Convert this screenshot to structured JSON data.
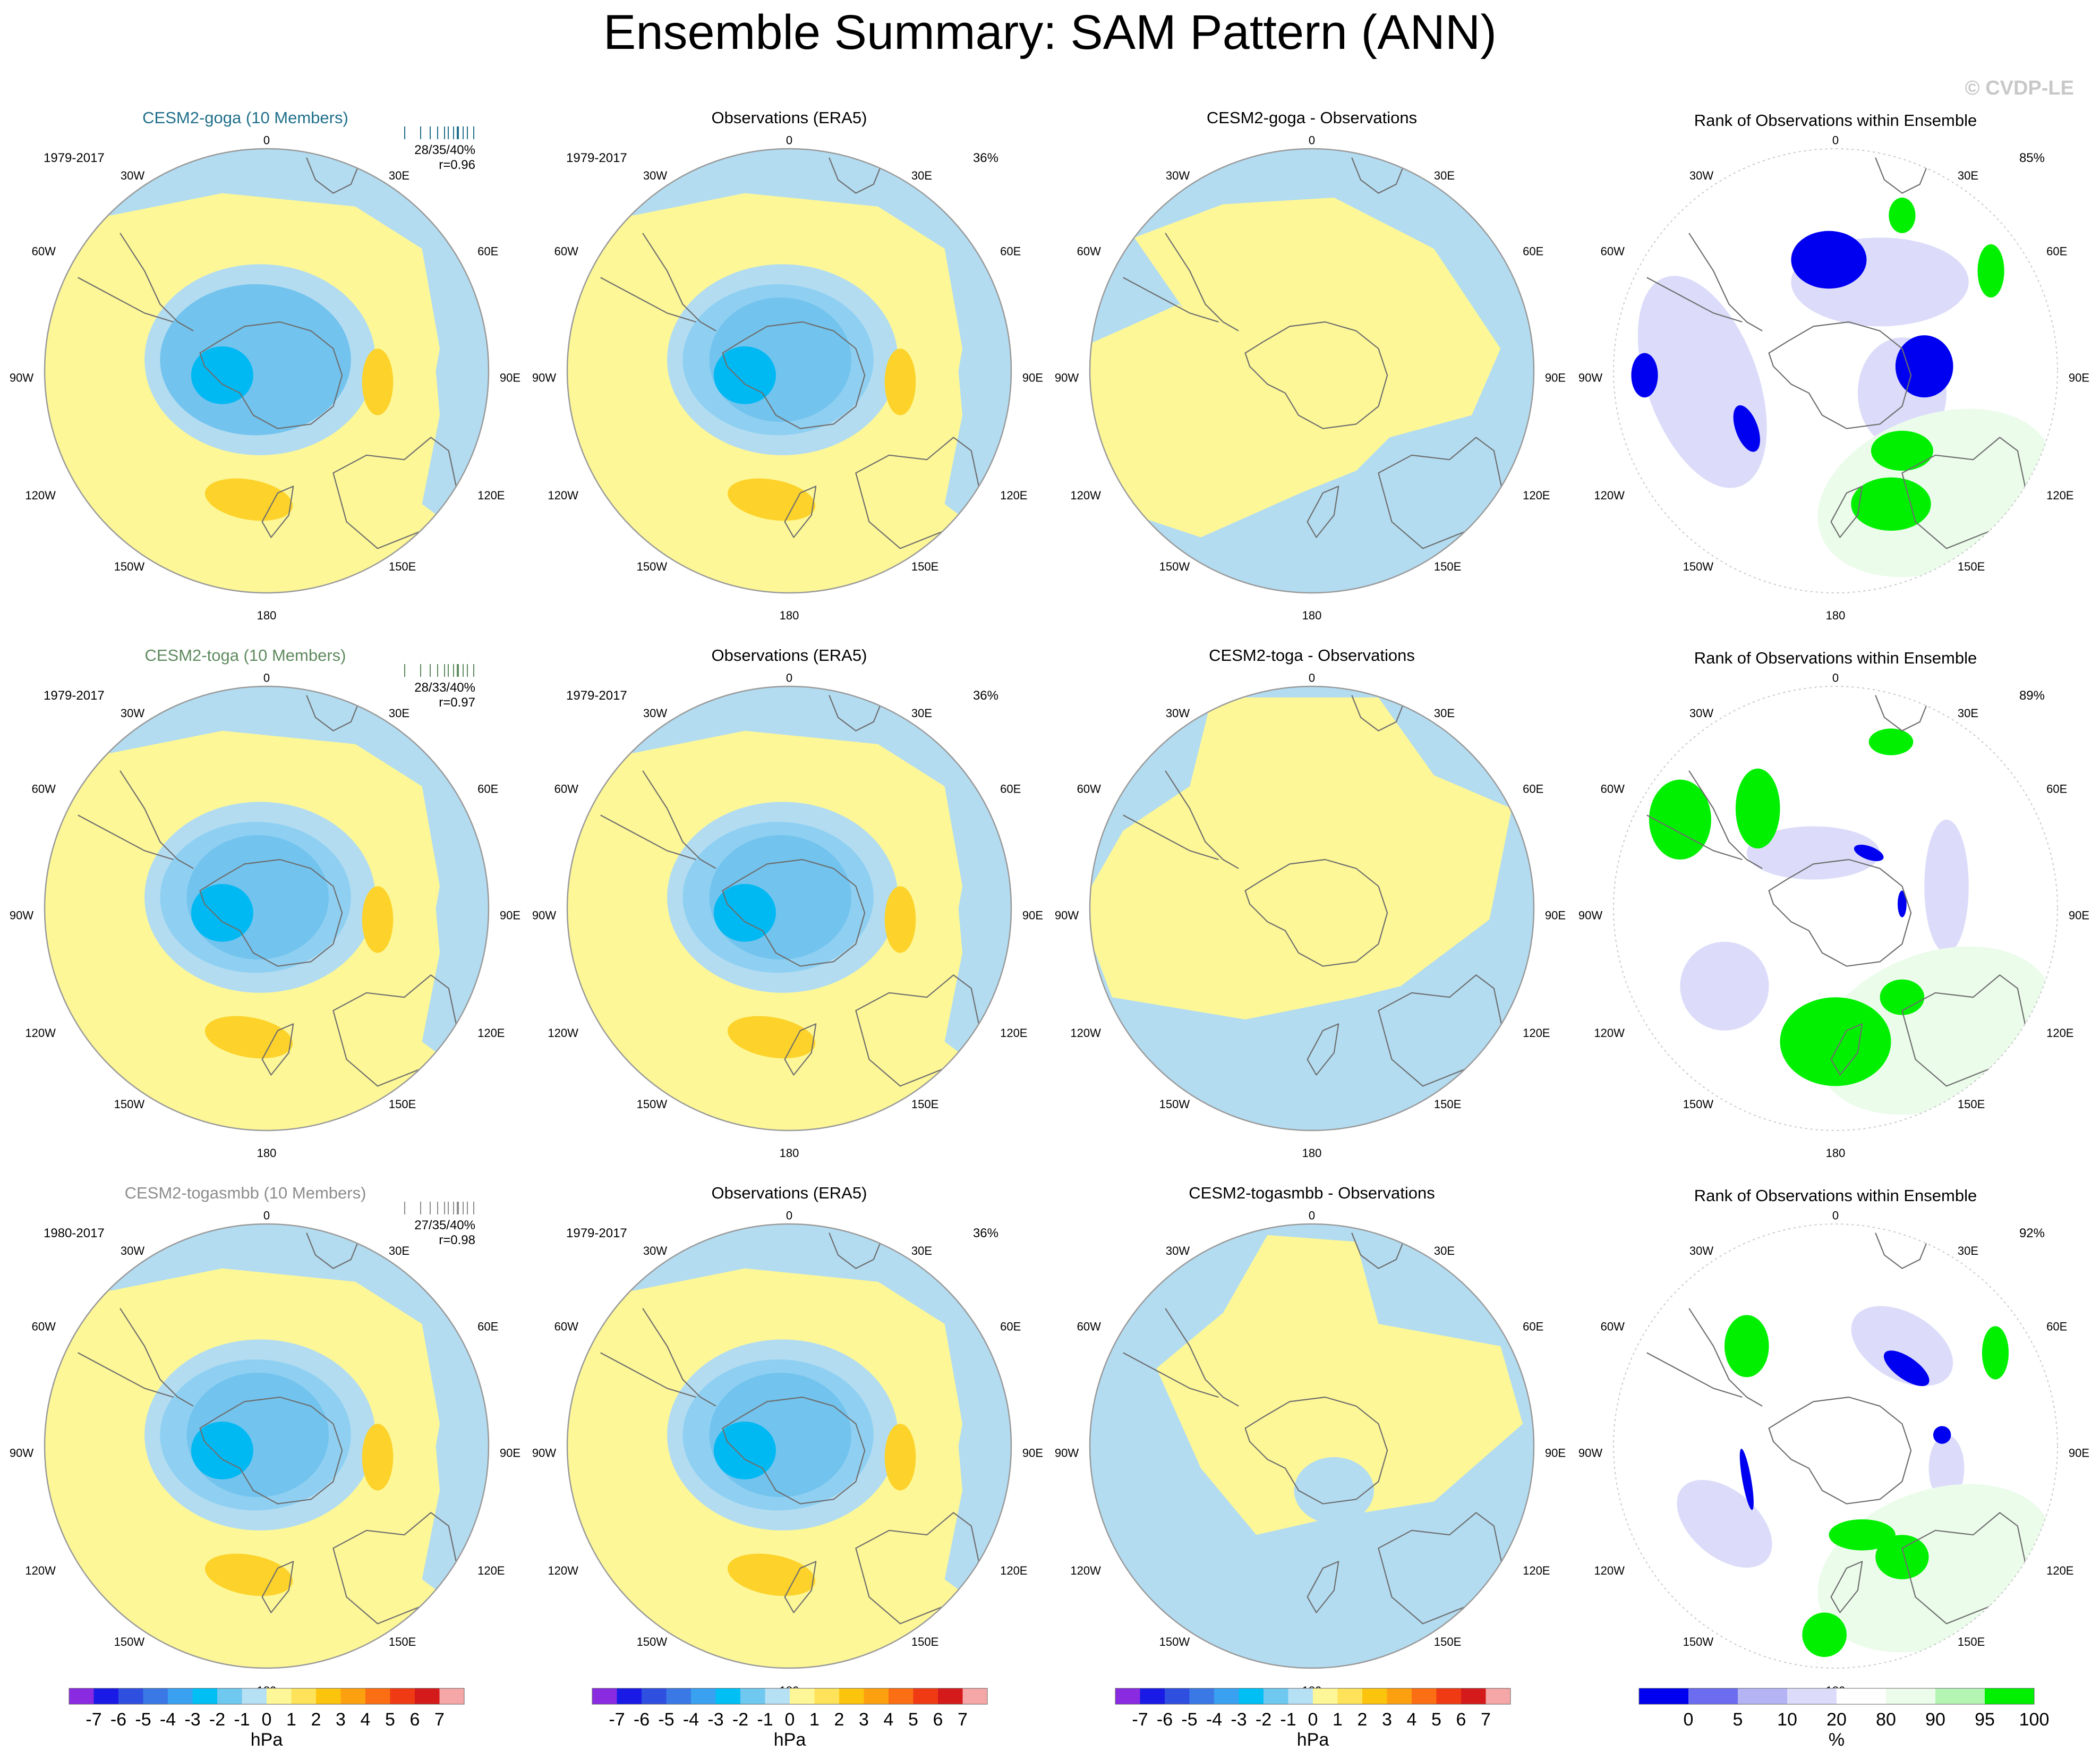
{
  "page": {
    "title": "Ensemble Summary: SAM Pattern (ANN)",
    "watermark": "© CVDP-LE"
  },
  "colors": {
    "ocean_light_blue": "#b3dcf1",
    "pale_yellow": "#fdf797",
    "mid_blue": "#72c3ee",
    "cyan_blue": "#00b9f2",
    "gold": "#fdd22a",
    "title_goga": "#1f6f8b",
    "title_toga": "#5e8a5e",
    "title_togasmbb": "#8c8c8c",
    "rank_blue": "#0000f0",
    "rank_lavender": "#dcdcfa",
    "rank_green": "#00f000",
    "rank_palegreen": "#ebfceb",
    "coast": "#6e6e6e"
  },
  "polar_labels": {
    "top": "0",
    "bottom": "180",
    "upper_left": "30W",
    "upper_right": "30E",
    "mid_upper_left": "60W",
    "mid_upper_right": "60E",
    "left": "90W",
    "right": "90E",
    "mid_lower_left": "120W",
    "mid_lower_right": "120E",
    "lower_left": "150W",
    "lower_right": "150E"
  },
  "rows": [
    {
      "model": {
        "title": "CESM2-goga (10 Members)",
        "years": "1979-2017",
        "stats": "28/35/40%",
        "corr": "r=0.96",
        "title_color_key": "title_goga"
      },
      "obs": {
        "title": "Observations (ERA5)",
        "years": "1979-2017",
        "pct": "36%"
      },
      "diff": {
        "title": "CESM2-goga - Observations"
      },
      "rank": {
        "title": "Rank of Observations within Ensemble",
        "pct": "85%"
      }
    },
    {
      "model": {
        "title": "CESM2-toga (10 Members)",
        "years": "1979-2017",
        "stats": "28/33/40%",
        "corr": "r=0.97",
        "title_color_key": "title_toga"
      },
      "obs": {
        "title": "Observations (ERA5)",
        "years": "1979-2017",
        "pct": "36%"
      },
      "diff": {
        "title": "CESM2-toga - Observations"
      },
      "rank": {
        "title": "Rank of Observations within Ensemble",
        "pct": "89%"
      }
    },
    {
      "model": {
        "title": "CESM2-togasmbb (10 Members)",
        "years": "1980-2017",
        "stats": "27/35/40%",
        "corr": "r=0.98",
        "title_color_key": "title_togasmbb"
      },
      "obs": {
        "title": "Observations (ERA5)",
        "years": "1979-2017",
        "pct": "36%"
      },
      "diff": {
        "title": "CESM2-togasmbb - Observations"
      },
      "rank": {
        "title": "Rank of Observations within Ensemble",
        "pct": "92%"
      }
    }
  ],
  "colorbars": {
    "hpa": {
      "unit": "hPa",
      "labels": [
        "-7",
        "-6",
        "-5",
        "-4",
        "-3",
        "-2",
        "-1",
        "0",
        "1",
        "2",
        "3",
        "4",
        "5",
        "6",
        "7"
      ],
      "colors": [
        "#8a2be2",
        "#1a1ae6",
        "#2e4fe0",
        "#3a78e6",
        "#3aa0f0",
        "#00bff5",
        "#6fc8f0",
        "#b6e0f4",
        "#fdf797",
        "#fde25a",
        "#fdc40e",
        "#fda010",
        "#fb6e14",
        "#f03a14",
        "#d41a1a",
        "#f5a6a6"
      ]
    },
    "pct": {
      "unit": "%",
      "labels": [
        "0",
        "5",
        "10",
        "20",
        "80",
        "90",
        "95",
        "100"
      ],
      "colors": [
        "#0000f0",
        "#6c6cf0",
        "#b4b4f5",
        "#dcdcfa",
        "#ffffff",
        "#ebfceb",
        "#b4f5b4",
        "#00f000"
      ]
    }
  },
  "chart_data": {
    "type": "polar_contour_map_panel",
    "projection": "south polar stereographic",
    "variable": "SAM Pattern (ANN)",
    "grid": {
      "rows": 3,
      "cols": 4
    },
    "panel_columns": [
      "model ensemble mean",
      "observations (ERA5)",
      "model - observations",
      "rank of observations within ensemble"
    ],
    "contour_levels_hpa": [
      -7,
      -6,
      -5,
      -4,
      -3,
      -2,
      -1,
      0,
      1,
      2,
      3,
      4,
      5,
      6,
      7
    ],
    "rank_levels_pct": [
      0,
      5,
      10,
      20,
      80,
      90,
      95,
      100
    ],
    "panels": [
      {
        "row": 0,
        "model": "CESM2-goga",
        "members": 10,
        "years": "1979-2017",
        "stats": "28/35/40%",
        "r": 0.96,
        "obs_pct_variance": 36,
        "rank_pct": 85
      },
      {
        "row": 1,
        "model": "CESM2-toga",
        "members": 10,
        "years": "1979-2017",
        "stats": "28/33/40%",
        "r": 0.97,
        "obs_pct_variance": 36,
        "rank_pct": 89
      },
      {
        "row": 2,
        "model": "CESM2-togasmbb",
        "members": 10,
        "years": "1980-2017",
        "stats": "27/35/40%",
        "r": 0.98,
        "obs_pct_variance": 36,
        "rank_pct": 92
      }
    ]
  }
}
